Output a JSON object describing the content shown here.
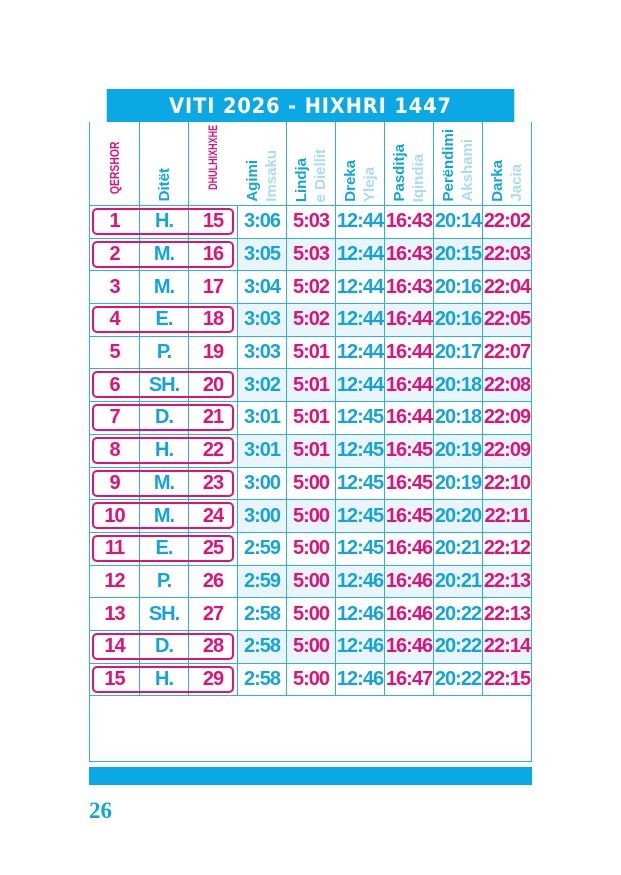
{
  "title": "VITI 2026 - HIXHRI 1447",
  "headers": {
    "month": "QERSHOR",
    "day": "Ditët",
    "hijri": "DHULHIXHXHE",
    "times": [
      {
        "main": "Agimi",
        "sub": "Imsaku"
      },
      {
        "main": "Lindja",
        "sub": "e Diellit"
      },
      {
        "main": "Dreka",
        "sub": "Yleja"
      },
      {
        "main": "Pasditja",
        "sub": "Iqindia"
      },
      {
        "main": "Perëndimi",
        "sub": "Akshami"
      },
      {
        "main": "Darka",
        "sub": "Jacia"
      }
    ]
  },
  "colors": {
    "blue": "#12a4de",
    "pink": "#e0127a",
    "bar": "#0aa9e6"
  },
  "rows": [
    {
      "d": "1",
      "w": "H.",
      "h": "15",
      "t": [
        "3:06",
        "5:03",
        "12:44",
        "16:43",
        "20:14",
        "22:02"
      ],
      "framed": true
    },
    {
      "d": "2",
      "w": "M.",
      "h": "16",
      "t": [
        "3:05",
        "5:03",
        "12:44",
        "16:43",
        "20:15",
        "22:03"
      ],
      "framed": true
    },
    {
      "d": "3",
      "w": "M.",
      "h": "17",
      "t": [
        "3:04",
        "5:02",
        "12:44",
        "16:43",
        "20:16",
        "22:04"
      ],
      "framed": false
    },
    {
      "d": "4",
      "w": "E.",
      "h": "18",
      "t": [
        "3:03",
        "5:02",
        "12:44",
        "16:44",
        "20:16",
        "22:05"
      ],
      "framed": true
    },
    {
      "d": "5",
      "w": "P.",
      "h": "19",
      "t": [
        "3:03",
        "5:01",
        "12:44",
        "16:44",
        "20:17",
        "22:07"
      ],
      "framed": false
    },
    {
      "d": "6",
      "w": "SH.",
      "h": "20",
      "t": [
        "3:02",
        "5:01",
        "12:44",
        "16:44",
        "20:18",
        "22:08"
      ],
      "framed": true
    },
    {
      "d": "7",
      "w": "D.",
      "h": "21",
      "t": [
        "3:01",
        "5:01",
        "12:45",
        "16:44",
        "20:18",
        "22:09"
      ],
      "framed": true
    },
    {
      "d": "8",
      "w": "H.",
      "h": "22",
      "t": [
        "3:01",
        "5:01",
        "12:45",
        "16:45",
        "20:19",
        "22:09"
      ],
      "framed": true
    },
    {
      "d": "9",
      "w": "M.",
      "h": "23",
      "t": [
        "3:00",
        "5:00",
        "12:45",
        "16:45",
        "20:19",
        "22:10"
      ],
      "framed": true
    },
    {
      "d": "10",
      "w": "M.",
      "h": "24",
      "t": [
        "3:00",
        "5:00",
        "12:45",
        "16:45",
        "20:20",
        "22:11"
      ],
      "framed": true
    },
    {
      "d": "11",
      "w": "E.",
      "h": "25",
      "t": [
        "2:59",
        "5:00",
        "12:45",
        "16:46",
        "20:21",
        "22:12"
      ],
      "framed": true
    },
    {
      "d": "12",
      "w": "P.",
      "h": "26",
      "t": [
        "2:59",
        "5:00",
        "12:46",
        "16:46",
        "20:21",
        "22:13"
      ],
      "framed": false
    },
    {
      "d": "13",
      "w": "SH.",
      "h": "27",
      "t": [
        "2:58",
        "5:00",
        "12:46",
        "16:46",
        "20:22",
        "22:13"
      ],
      "framed": false
    },
    {
      "d": "14",
      "w": "D.",
      "h": "28",
      "t": [
        "2:58",
        "5:00",
        "12:46",
        "16:46",
        "20:22",
        "22:14"
      ],
      "framed": true
    },
    {
      "d": "15",
      "w": "H.",
      "h": "29",
      "t": [
        "2:58",
        "5:00",
        "12:46",
        "16:47",
        "20:22",
        "22:15"
      ],
      "framed": true
    }
  ],
  "page_number": "26"
}
